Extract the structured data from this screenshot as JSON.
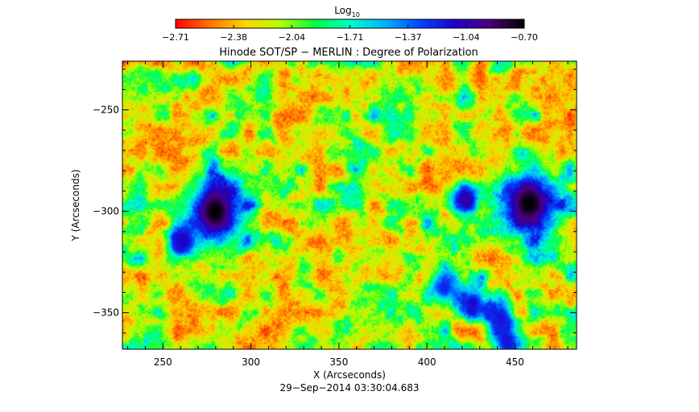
{
  "colorbar": {
    "label": "Log",
    "label_sub": "10",
    "ticks": [
      "−2.71",
      "−2.38",
      "−2.04",
      "−1.71",
      "−1.37",
      "−1.04",
      "−0.70"
    ],
    "range": [
      -2.71,
      -0.7
    ],
    "colors": [
      "#ff0000",
      "#ff7700",
      "#ffd400",
      "#b4ff00",
      "#00ff3c",
      "#00ffc8",
      "#00b4ff",
      "#0046ff",
      "#1e00c8",
      "#4b007d",
      "#000000"
    ]
  },
  "chart_data": {
    "type": "heatmap",
    "title": "Hinode SOT/SP − MERLIN : Degree of Polarization",
    "xlabel": "X (Arcseconds)",
    "ylabel": "Y (Arcseconds)",
    "xlim": [
      227,
      485
    ],
    "ylim": [
      -368,
      -226
    ],
    "xticks": [
      250,
      300,
      350,
      400,
      450
    ],
    "xtick_labels": [
      "250",
      "300",
      "350",
      "400",
      "450"
    ],
    "yticks": [
      -250,
      -300,
      -350
    ],
    "ytick_labels": [
      "−250",
      "−300",
      "−350"
    ],
    "value_scale": "log10",
    "features": [
      {
        "kind": "sunspot",
        "x": 280,
        "y": -300,
        "peak": -0.7
      },
      {
        "kind": "sunspot",
        "x": 458,
        "y": -296,
        "peak": -0.7
      },
      {
        "kind": "pore",
        "x": 422,
        "y": -294,
        "peak": -1.0
      },
      {
        "kind": "pore",
        "x": 426,
        "y": -345,
        "peak": -1.1
      },
      {
        "kind": "pore",
        "x": 442,
        "y": -353,
        "peak": -1.15
      },
      {
        "kind": "pore",
        "x": 410,
        "y": -338,
        "peak": -1.2
      },
      {
        "kind": "pore",
        "x": 445,
        "y": -365,
        "peak": -1.15
      },
      {
        "kind": "pore",
        "x": 262,
        "y": -315,
        "peak": -1.1
      }
    ]
  },
  "footer": {
    "timestamp": "29−Sep−2014 03:30:04.683"
  }
}
